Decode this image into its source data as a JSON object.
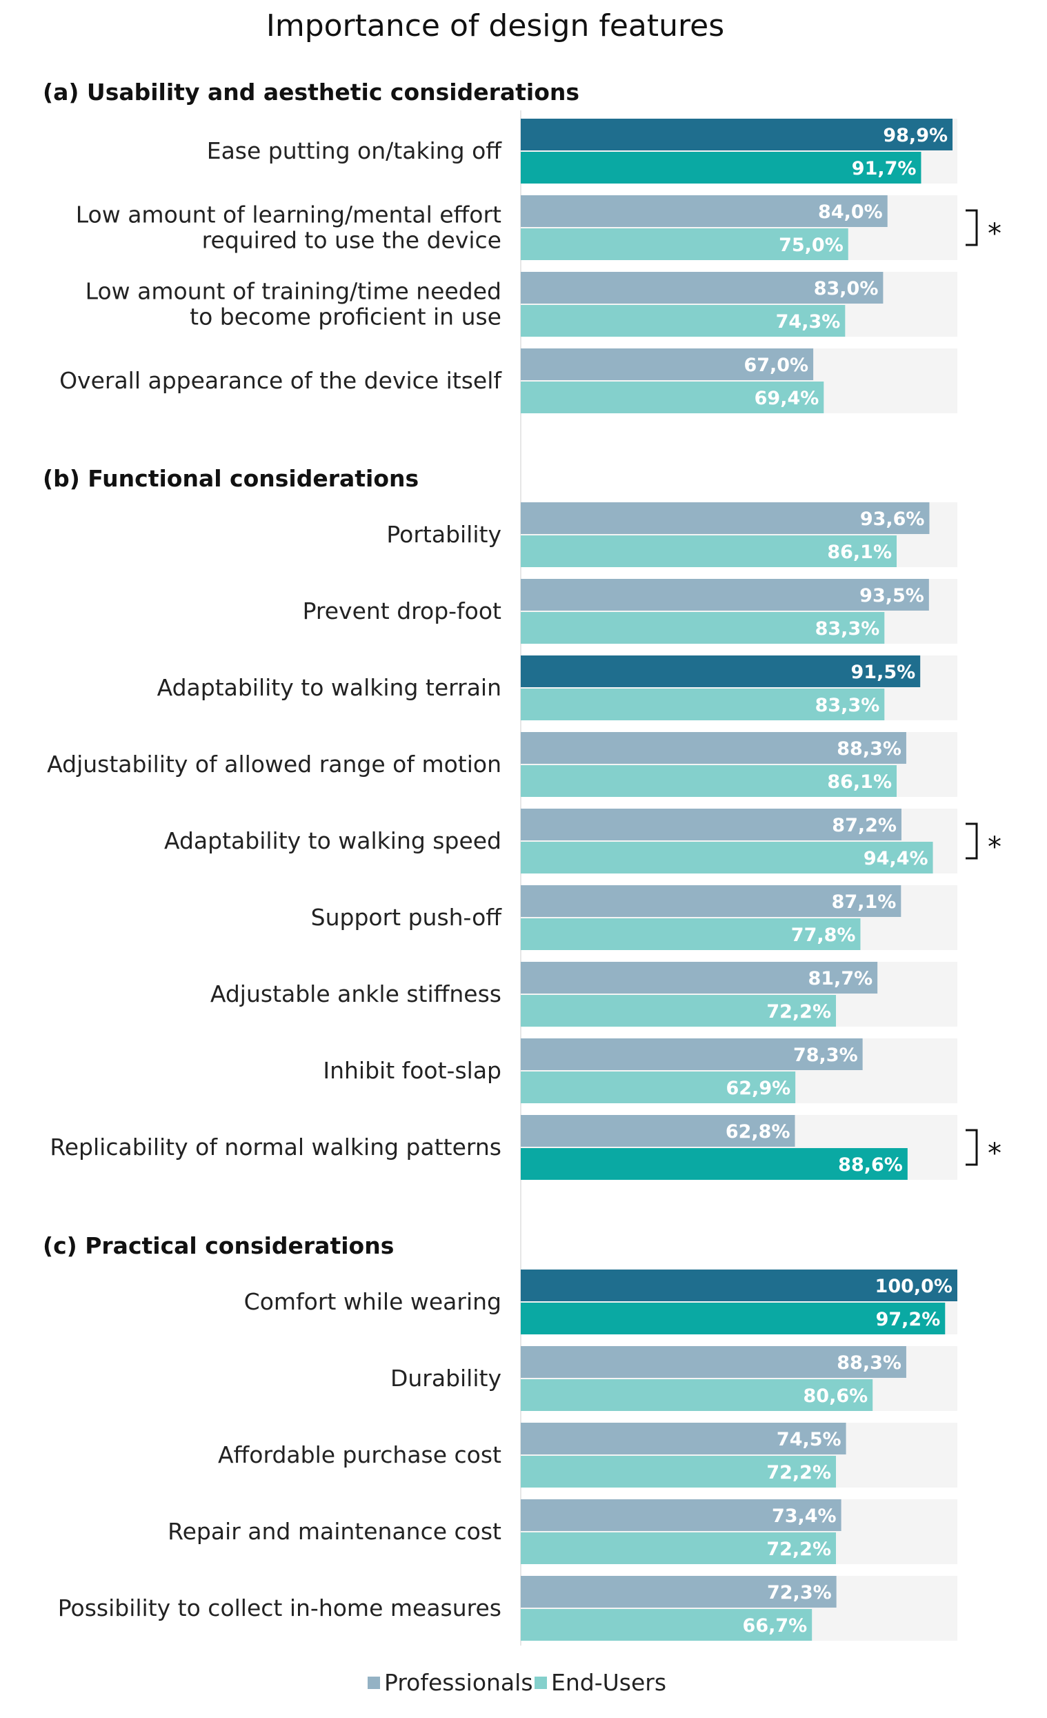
{
  "chart_data": {
    "type": "bar",
    "orientation": "horizontal",
    "title": "Importance of design features",
    "xlim": [
      0,
      100
    ],
    "legend": {
      "position": "bottom",
      "entries": [
        "Professionals",
        "End-Users"
      ]
    },
    "colors": {
      "professionals": "#94b2c4",
      "professionals_highlight": "#1f6e8e",
      "end_users": "#84d0cc",
      "end_users_highlight": "#0aa9a3",
      "track": "#f4f4f4"
    },
    "significance_marker": "*",
    "sections": [
      {
        "label": "(a) Usability and aesthetic considerations",
        "items": [
          {
            "lines": [
              "Ease putting on/taking off"
            ],
            "professionals": 98.9,
            "end_users": 91.7,
            "p_label": "98,9%",
            "e_label": "91,7%",
            "highlight": true,
            "significant": false
          },
          {
            "lines": [
              "Low amount of learning/mental effort",
              "required to use the device"
            ],
            "professionals": 84.0,
            "end_users": 75.0,
            "p_label": "84,0%",
            "e_label": "75,0%",
            "highlight": false,
            "significant": true
          },
          {
            "lines": [
              "Low amount of training/time needed",
              "to become proficient in use"
            ],
            "professionals": 83.0,
            "end_users": 74.3,
            "p_label": "83,0%",
            "e_label": "74,3%",
            "highlight": false,
            "significant": false
          },
          {
            "lines": [
              "Overall appearance of the device itself"
            ],
            "professionals": 67.0,
            "end_users": 69.4,
            "p_label": "67,0%",
            "e_label": "69,4%",
            "highlight": false,
            "significant": false
          }
        ]
      },
      {
        "label": "(b) Functional considerations",
        "items": [
          {
            "lines": [
              "Portability"
            ],
            "professionals": 93.6,
            "end_users": 86.1,
            "p_label": "93,6%",
            "e_label": "86,1%",
            "highlight": false,
            "significant": false
          },
          {
            "lines": [
              "Prevent drop-foot"
            ],
            "professionals": 93.5,
            "end_users": 83.3,
            "p_label": "93,5%",
            "e_label": "83,3%",
            "highlight": false,
            "significant": false
          },
          {
            "lines": [
              "Adaptability to walking terrain"
            ],
            "professionals": 91.5,
            "end_users": 83.3,
            "p_label": "91,5%",
            "e_label": "83,3%",
            "highlight": "professionals",
            "significant": false
          },
          {
            "lines": [
              "Adjustability of allowed range of motion"
            ],
            "professionals": 88.3,
            "end_users": 86.1,
            "p_label": "88,3%",
            "e_label": "86,1%",
            "highlight": false,
            "significant": false
          },
          {
            "lines": [
              "Adaptability to walking speed"
            ],
            "professionals": 87.2,
            "end_users": 94.4,
            "p_label": "87,2%",
            "e_label": "94,4%",
            "highlight": false,
            "significant": true
          },
          {
            "lines": [
              "Support push-off"
            ],
            "professionals": 87.1,
            "end_users": 77.8,
            "p_label": "87,1%",
            "e_label": "77,8%",
            "highlight": false,
            "significant": false
          },
          {
            "lines": [
              "Adjustable ankle stiffness"
            ],
            "professionals": 81.7,
            "end_users": 72.2,
            "p_label": "81,7%",
            "e_label": "72,2%",
            "highlight": false,
            "significant": false
          },
          {
            "lines": [
              "Inhibit foot-slap"
            ],
            "professionals": 78.3,
            "end_users": 62.9,
            "p_label": "78,3%",
            "e_label": "62,9%",
            "highlight": false,
            "significant": false
          },
          {
            "lines": [
              "Replicability of normal walking patterns"
            ],
            "professionals": 62.8,
            "end_users": 88.6,
            "p_label": "62,8%",
            "e_label": "88,6%",
            "highlight": "end_users",
            "significant": true
          }
        ]
      },
      {
        "label": "(c) Practical considerations",
        "items": [
          {
            "lines": [
              "Comfort while wearing"
            ],
            "professionals": 100.0,
            "end_users": 97.2,
            "p_label": "100,0%",
            "e_label": "97,2%",
            "highlight": true,
            "significant": false
          },
          {
            "lines": [
              "Durability"
            ],
            "professionals": 88.3,
            "end_users": 80.6,
            "p_label": "88,3%",
            "e_label": "80,6%",
            "highlight": false,
            "significant": false
          },
          {
            "lines": [
              "Affordable purchase cost"
            ],
            "professionals": 74.5,
            "end_users": 72.2,
            "p_label": "74,5%",
            "e_label": "72,2%",
            "highlight": false,
            "significant": false
          },
          {
            "lines": [
              "Repair and maintenance cost"
            ],
            "professionals": 73.4,
            "end_users": 72.2,
            "p_label": "73,4%",
            "e_label": "72,2%",
            "highlight": false,
            "significant": false
          },
          {
            "lines": [
              "Possibility to collect in-home measures"
            ],
            "professionals": 72.3,
            "end_users": 66.7,
            "p_label": "72,3%",
            "e_label": "66,7%",
            "highlight": false,
            "significant": false
          }
        ]
      }
    ]
  }
}
